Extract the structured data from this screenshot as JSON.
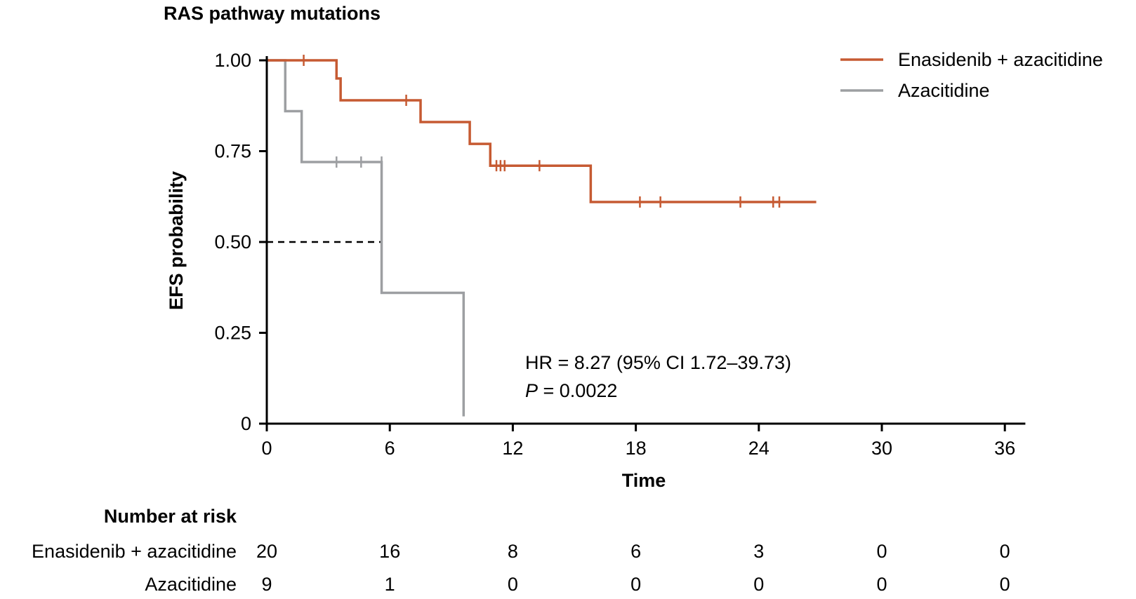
{
  "chart_data": {
    "type": "line",
    "subtype": "kaplan-meier step",
    "title": "RAS pathway mutations",
    "xlabel": "Time",
    "ylabel": "EFS probability",
    "xlim": [
      0,
      37
    ],
    "ylim": [
      0,
      1.0
    ],
    "x_ticks": [
      0,
      6,
      12,
      18,
      24,
      30,
      36
    ],
    "y_ticks": [
      {
        "value": 0,
        "label": "0"
      },
      {
        "value": 0.25,
        "label": "0.25"
      },
      {
        "value": 0.5,
        "label": "0.50"
      },
      {
        "value": 0.75,
        "label": "0.75"
      },
      {
        "value": 1.0,
        "label": "1.00"
      }
    ],
    "grid": false,
    "legend_position": "top-right",
    "series": [
      {
        "name": "Enasidenib + azacitidine",
        "color": "#c65a32",
        "steps": [
          [
            0,
            1.0
          ],
          [
            3.4,
            0.95
          ],
          [
            3.6,
            0.89
          ],
          [
            7.5,
            0.83
          ],
          [
            9.9,
            0.77
          ],
          [
            10.9,
            0.71
          ],
          [
            15.8,
            0.61
          ],
          [
            26.8,
            0.61
          ]
        ],
        "censored": [
          [
            1.8,
            1.0
          ],
          [
            6.8,
            0.89
          ],
          [
            11.2,
            0.71
          ],
          [
            11.4,
            0.71
          ],
          [
            11.6,
            0.71
          ],
          [
            13.3,
            0.71
          ],
          [
            18.2,
            0.61
          ],
          [
            19.2,
            0.61
          ],
          [
            23.1,
            0.61
          ],
          [
            24.7,
            0.61
          ],
          [
            25.0,
            0.61
          ]
        ]
      },
      {
        "name": "Azacitidine",
        "color": "#9d9fa2",
        "steps": [
          [
            0,
            1.0
          ],
          [
            0.9,
            0.86
          ],
          [
            1.7,
            0.72
          ],
          [
            5.6,
            0.36
          ],
          [
            9.6,
            0.02
          ]
        ],
        "censored": [
          [
            3.4,
            0.72
          ],
          [
            4.6,
            0.72
          ],
          [
            5.6,
            0.72
          ]
        ]
      }
    ],
    "median_line": {
      "y": 0.5,
      "x_start": 0,
      "x_end": 5.6,
      "style": "dashed"
    },
    "annotations": {
      "hr": "HR = 8.27 (95% CI 1.72–39.73)",
      "p_label": "P",
      "p_value": " = 0.0022"
    },
    "risk_table": {
      "title": "Number at risk",
      "time_points": [
        0,
        6,
        12,
        18,
        24,
        30,
        36
      ],
      "rows": [
        {
          "label": "Enasidenib + azacitidine",
          "counts": [
            "20",
            "16",
            "8",
            "6",
            "3",
            "0",
            "0"
          ]
        },
        {
          "label": "Azacitidine",
          "counts": [
            "9",
            "1",
            "0",
            "0",
            "0",
            "0",
            "0"
          ]
        }
      ]
    }
  }
}
